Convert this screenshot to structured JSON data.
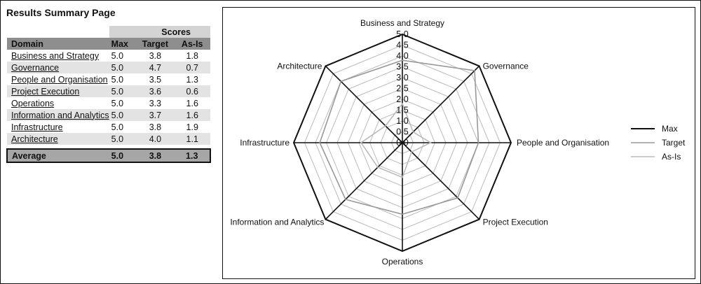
{
  "page_title": "Results Summary Page",
  "table": {
    "group_header": "Scores",
    "columns": [
      "Domain",
      "Max",
      "Target",
      "As-Is"
    ],
    "rows": [
      {
        "domain": "Business and Strategy",
        "max": "5.0",
        "target": "3.8",
        "asis": "1.8"
      },
      {
        "domain": "Governance",
        "max": "5.0",
        "target": "4.7",
        "asis": "0.7"
      },
      {
        "domain": "People and Organisation",
        "max": "5.0",
        "target": "3.5",
        "asis": "1.3"
      },
      {
        "domain": "Project Execution",
        "max": "5.0",
        "target": "3.6",
        "asis": "0.6"
      },
      {
        "domain": "Operations",
        "max": "5.0",
        "target": "3.3",
        "asis": "1.6"
      },
      {
        "domain": "Information and Analytics",
        "max": "5.0",
        "target": "3.7",
        "asis": "1.6"
      },
      {
        "domain": "Infrastructure",
        "max": "5.0",
        "target": "3.8",
        "asis": "1.9"
      },
      {
        "domain": "Architecture",
        "max": "5.0",
        "target": "4.0",
        "asis": "1.1"
      }
    ],
    "average": {
      "label": "Average",
      "max": "5.0",
      "target": "3.8",
      "asis": "1.3"
    }
  },
  "chart_data": {
    "type": "radar",
    "categories": [
      "Business and Strategy",
      "Governance",
      "People and Organisation",
      "Project Execution",
      "Operations",
      "Information and Analytics",
      "Infrastructure",
      "Architecture"
    ],
    "series": [
      {
        "name": "Max",
        "values": [
          5.0,
          5.0,
          5.0,
          5.0,
          5.0,
          5.0,
          5.0,
          5.0
        ],
        "color": "#111111"
      },
      {
        "name": "Target",
        "values": [
          3.8,
          4.7,
          3.5,
          3.6,
          3.3,
          3.7,
          3.8,
          4.0
        ],
        "color": "#999999"
      },
      {
        "name": "As-Is",
        "values": [
          1.8,
          0.7,
          1.3,
          0.6,
          1.6,
          1.6,
          1.9,
          1.1
        ],
        "color": "#bbbbbb"
      }
    ],
    "rlim": [
      0,
      5
    ],
    "ticks": [
      "0.0",
      "0.5",
      "1.0",
      "1.5",
      "2.0",
      "2.5",
      "3.0",
      "3.5",
      "4.0",
      "4.5",
      "5.0"
    ],
    "grid": true,
    "legend_position": "right",
    "grid_color": "#bbbbbb"
  }
}
